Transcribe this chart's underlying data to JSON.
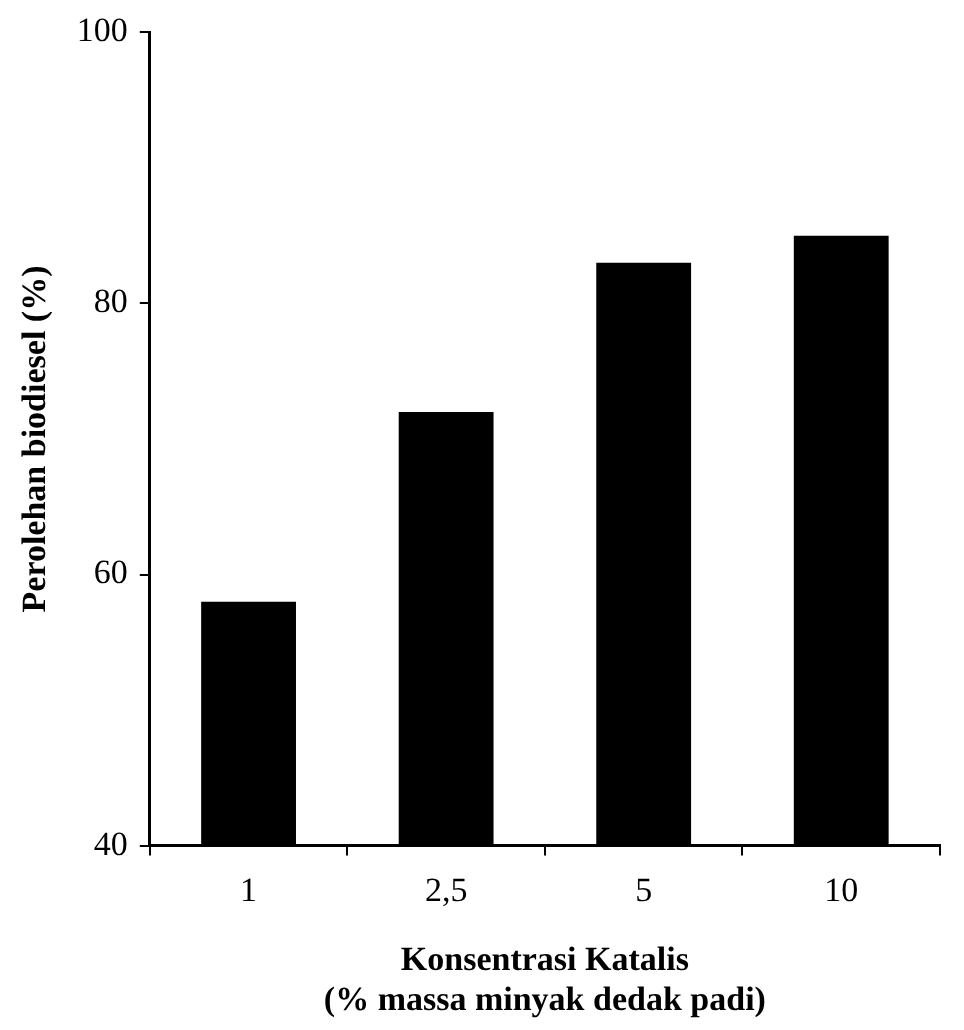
{
  "chart_data": {
    "type": "bar",
    "xlabel": "Konsentrasi Katalis\n(% massa minyak dedak padi)",
    "ylabel": "Perolehan biodiesel (%)",
    "categories": [
      "1",
      "2,5",
      "5",
      "10"
    ],
    "values": [
      58,
      72,
      83,
      85
    ],
    "color": "#000000",
    "ylim": [
      40,
      100
    ],
    "yticks": [
      40,
      60,
      80,
      100
    ],
    "grid": false
  }
}
